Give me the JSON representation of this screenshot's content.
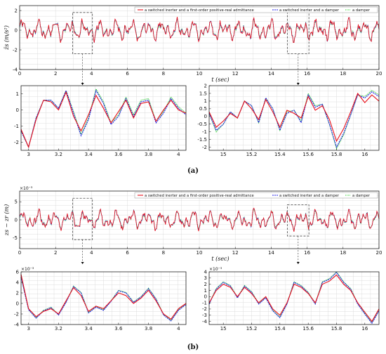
{
  "series_names": [
    "a switched inerter and a first-order positive-real admittance",
    "a switched inerter and a damper",
    "a damper"
  ],
  "colors": {
    "red": "#e8101a",
    "blue": "#1a1ae6",
    "green": "#22cc22",
    "grid": "#d6d6d6",
    "axis": "#000000",
    "box": "#444444"
  },
  "captions": {
    "a": "(a)",
    "b": "(b)"
  },
  "chart_data": [
    {
      "id": "a-main",
      "type": "line",
      "ylabel": "z̈s (m/s²)",
      "xlabel": "t (sec)",
      "xlim": [
        0,
        20
      ],
      "ylim": [
        -4,
        2.5
      ],
      "xticks": [
        0,
        2,
        4,
        6,
        8,
        10,
        12,
        14,
        16,
        18,
        20
      ],
      "yticks": [
        -4,
        -2,
        0,
        2
      ],
      "legend": "top-right",
      "grid": true,
      "zoom_boxes": [
        {
          "x": [
            2.95,
            4.05
          ],
          "y": [
            -2.4,
            1.8
          ]
        },
        {
          "x": [
            14.9,
            16.1
          ],
          "y": [
            -2.4,
            2.0
          ]
        }
      ],
      "signal": {
        "amp": 0.9,
        "seed": 1
      }
    },
    {
      "id": "a-zoom1",
      "type": "line",
      "xlim": [
        2.95,
        4.05
      ],
      "ylim": [
        -2.5,
        1.5
      ],
      "xticks": [
        3,
        3.2,
        3.4,
        3.6,
        3.8,
        4
      ],
      "yticks": [
        -2,
        -1,
        0,
        1
      ],
      "grid": true,
      "series": [
        {
          "name": "red",
          "x": [
            2.95,
            3.0,
            3.05,
            3.1,
            3.15,
            3.2,
            3.25,
            3.3,
            3.35,
            3.4,
            3.45,
            3.5,
            3.55,
            3.6,
            3.65,
            3.7,
            3.75,
            3.8,
            3.85,
            3.9,
            3.95,
            4.0,
            4.05
          ],
          "y": [
            -1.2,
            -2.3,
            -0.6,
            0.6,
            0.5,
            0.0,
            1.1,
            -0.4,
            -1.3,
            -0.3,
            0.9,
            0.1,
            -0.8,
            -0.1,
            0.6,
            -0.5,
            0.4,
            0.5,
            -0.7,
            0.0,
            0.6,
            0.0,
            -0.2
          ]
        },
        {
          "name": "blue",
          "x": [
            2.95,
            3.0,
            3.05,
            3.1,
            3.15,
            3.2,
            3.25,
            3.3,
            3.35,
            3.4,
            3.45,
            3.5,
            3.55,
            3.6,
            3.65,
            3.7,
            3.75,
            3.8,
            3.85,
            3.9,
            3.95,
            4.0,
            4.05
          ],
          "y": [
            -1.3,
            -2.3,
            -0.5,
            0.6,
            0.6,
            0.1,
            1.2,
            -0.2,
            -1.6,
            -0.6,
            1.2,
            0.4,
            -0.9,
            -0.4,
            0.7,
            -0.4,
            0.5,
            0.6,
            -0.8,
            -0.2,
            0.7,
            0.1,
            -0.3
          ]
        },
        {
          "name": "green",
          "x": [
            2.95,
            3.0,
            3.05,
            3.1,
            3.15,
            3.2,
            3.25,
            3.3,
            3.35,
            3.4,
            3.45,
            3.5,
            3.55,
            3.6,
            3.65,
            3.7,
            3.75,
            3.8,
            3.85,
            3.9,
            3.95,
            4.0,
            4.05
          ],
          "y": [
            -1.3,
            -2.3,
            -0.5,
            0.6,
            0.6,
            0.1,
            1.2,
            -0.1,
            -1.5,
            -0.5,
            1.3,
            0.5,
            -0.8,
            -0.3,
            0.8,
            -0.3,
            0.6,
            0.7,
            -0.7,
            -0.1,
            0.8,
            0.2,
            -0.2
          ]
        }
      ]
    },
    {
      "id": "a-zoom2",
      "type": "line",
      "xlim": [
        14.9,
        16.1
      ],
      "ylim": [
        -2.2,
        2.0
      ],
      "xticks": [
        15,
        15.2,
        15.4,
        15.6,
        15.8,
        16
      ],
      "yticks": [
        -2,
        -1.5,
        -1,
        -0.5,
        0,
        0.5,
        1,
        1.5,
        2
      ],
      "grid": true,
      "series": [
        {
          "name": "red",
          "x": [
            14.9,
            14.95,
            15.0,
            15.05,
            15.1,
            15.15,
            15.2,
            15.25,
            15.3,
            15.35,
            15.4,
            15.45,
            15.5,
            15.55,
            15.6,
            15.65,
            15.7,
            15.75,
            15.8,
            15.85,
            15.9,
            15.95,
            16.0,
            16.05,
            16.1
          ],
          "y": [
            0.3,
            -0.7,
            -0.3,
            0.2,
            -0.1,
            1.0,
            0.5,
            -0.2,
            1.1,
            0.3,
            -0.7,
            0.4,
            0.2,
            -0.1,
            1.3,
            0.4,
            0.7,
            -0.2,
            -1.6,
            -0.8,
            0.3,
            1.5,
            0.9,
            1.4,
            1.0
          ]
        },
        {
          "name": "blue",
          "x": [
            14.9,
            14.95,
            15.0,
            15.05,
            15.1,
            15.15,
            15.2,
            15.25,
            15.3,
            15.35,
            15.4,
            15.45,
            15.5,
            15.55,
            15.6,
            15.65,
            15.7,
            15.75,
            15.8,
            15.85,
            15.9,
            15.95,
            16.0,
            16.05,
            16.1
          ],
          "y": [
            0.2,
            -0.9,
            -0.5,
            0.3,
            -0.1,
            1.0,
            0.7,
            -0.4,
            1.2,
            0.5,
            -0.9,
            0.2,
            0.4,
            -0.4,
            1.4,
            0.6,
            0.8,
            -0.5,
            -2.0,
            -1.1,
            0.1,
            1.4,
            1.2,
            1.6,
            1.3
          ]
        },
        {
          "name": "green",
          "x": [
            14.9,
            14.95,
            15.0,
            15.05,
            15.1,
            15.15,
            15.2,
            15.25,
            15.3,
            15.35,
            15.4,
            15.45,
            15.5,
            15.55,
            15.6,
            15.65,
            15.7,
            15.75,
            15.8,
            15.85,
            15.9,
            15.95,
            16.0,
            16.05,
            16.1
          ],
          "y": [
            0.2,
            -1.0,
            -0.5,
            0.3,
            -0.1,
            1.0,
            0.7,
            -0.4,
            1.2,
            0.5,
            -0.9,
            0.3,
            0.4,
            -0.3,
            1.5,
            0.7,
            0.8,
            -0.5,
            -2.1,
            -1.2,
            0.1,
            1.4,
            1.3,
            1.7,
            1.4
          ]
        }
      ]
    },
    {
      "id": "b-main",
      "type": "line",
      "ylabel": "zs − zr (m)",
      "xlabel": "t (sec)",
      "exponent": "×10⁻³",
      "xlim": [
        0,
        20
      ],
      "ylim": [
        -8,
        8
      ],
      "xticks": [
        0,
        2,
        4,
        6,
        8,
        10,
        12,
        14,
        16,
        18,
        20
      ],
      "yticks": [
        -5,
        0,
        5
      ],
      "legend": "top-right",
      "grid": true,
      "zoom_boxes": [
        {
          "x": [
            2.95,
            4.05
          ],
          "y": [
            -5.5,
            6.0
          ]
        },
        {
          "x": [
            14.9,
            16.1
          ],
          "y": [
            -4.5,
            4.2
          ]
        }
      ],
      "signal": {
        "amp": 2.2,
        "seed": 7
      }
    },
    {
      "id": "b-zoom1",
      "type": "line",
      "exponent": "×10⁻³",
      "xlim": [
        2.95,
        4.05
      ],
      "ylim": [
        -4,
        6
      ],
      "xticks": [
        3,
        3.2,
        3.4,
        3.6,
        3.8,
        4
      ],
      "yticks": [
        -4,
        -2,
        0,
        2,
        4,
        6
      ],
      "grid": true,
      "series": [
        {
          "name": "red",
          "x": [
            2.95,
            3.0,
            3.05,
            3.1,
            3.15,
            3.2,
            3.25,
            3.3,
            3.35,
            3.4,
            3.45,
            3.5,
            3.55,
            3.6,
            3.65,
            3.7,
            3.75,
            3.8,
            3.85,
            3.9,
            3.95,
            4.0,
            4.05
          ],
          "y": [
            5.5,
            -1.0,
            -2.5,
            -1.5,
            -1.0,
            -2.0,
            0.5,
            3.0,
            1.5,
            -1.5,
            -0.5,
            -1.0,
            0.5,
            2.0,
            1.5,
            0.0,
            1.0,
            2.5,
            0.5,
            -2.0,
            -3.0,
            -1.0,
            0.0
          ]
        },
        {
          "name": "blue",
          "x": [
            2.95,
            3.0,
            3.05,
            3.1,
            3.15,
            3.2,
            3.25,
            3.3,
            3.35,
            3.4,
            3.45,
            3.5,
            3.55,
            3.6,
            3.65,
            3.7,
            3.75,
            3.8,
            3.85,
            3.9,
            3.95,
            4.0,
            4.05
          ],
          "y": [
            5.0,
            -1.2,
            -2.8,
            -1.4,
            -0.8,
            -2.2,
            0.2,
            3.2,
            2.0,
            -1.8,
            -0.7,
            -1.3,
            0.4,
            2.4,
            2.0,
            0.2,
            1.2,
            2.8,
            0.8,
            -2.2,
            -3.3,
            -1.3,
            -0.2
          ]
        },
        {
          "name": "green",
          "x": [
            2.95,
            3.0,
            3.05,
            3.1,
            3.15,
            3.2,
            3.25,
            3.3,
            3.35,
            3.4,
            3.45,
            3.5,
            3.55,
            3.6,
            3.65,
            3.7,
            3.75,
            3.8,
            3.85,
            3.9,
            3.95,
            4.0,
            4.05
          ],
          "y": [
            5.0,
            -1.1,
            -2.7,
            -1.3,
            -0.7,
            -2.1,
            0.3,
            3.3,
            2.1,
            -1.7,
            -0.6,
            -1.2,
            0.5,
            2.5,
            2.1,
            0.3,
            1.3,
            2.9,
            0.9,
            -2.1,
            -3.2,
            -1.2,
            -0.1
          ]
        }
      ]
    },
    {
      "id": "b-zoom2",
      "type": "line",
      "exponent": "×10⁻³",
      "xlim": [
        14.9,
        16.1
      ],
      "ylim": [
        -4.5,
        4.0
      ],
      "xticks": [
        15,
        15.2,
        15.4,
        15.6,
        15.8,
        16
      ],
      "yticks": [
        -4,
        -3,
        -2,
        -1,
        0,
        1,
        2,
        3,
        4
      ],
      "grid": true,
      "series": [
        {
          "name": "red",
          "x": [
            14.9,
            14.95,
            15.0,
            15.05,
            15.1,
            15.15,
            15.2,
            15.25,
            15.3,
            15.35,
            15.4,
            15.45,
            15.5,
            15.55,
            15.6,
            15.65,
            15.7,
            15.75,
            15.8,
            15.85,
            15.9,
            15.95,
            16.0,
            16.05,
            16.1
          ],
          "y": [
            -1.0,
            1.0,
            2.0,
            1.5,
            0.0,
            1.5,
            0.5,
            -1.0,
            0.0,
            -2.0,
            -3.0,
            -1.0,
            2.0,
            1.5,
            0.5,
            -1.0,
            2.0,
            2.5,
            3.5,
            2.0,
            1.0,
            -1.0,
            -2.5,
            -4.0,
            -2.0
          ]
        },
        {
          "name": "blue",
          "x": [
            14.9,
            14.95,
            15.0,
            15.05,
            15.1,
            15.15,
            15.2,
            15.25,
            15.3,
            15.35,
            15.4,
            15.45,
            15.5,
            15.55,
            15.6,
            15.65,
            15.7,
            15.75,
            15.8,
            15.85,
            15.9,
            15.95,
            16.0,
            16.05,
            16.1
          ],
          "y": [
            -1.2,
            1.2,
            2.3,
            1.7,
            -0.2,
            1.7,
            0.7,
            -1.2,
            -0.2,
            -2.3,
            -3.4,
            -1.2,
            2.3,
            1.7,
            0.6,
            -1.2,
            2.3,
            2.8,
            3.9,
            2.3,
            1.2,
            -1.2,
            -2.8,
            -4.3,
            -2.3
          ]
        },
        {
          "name": "green",
          "x": [
            14.9,
            14.95,
            15.0,
            15.05,
            15.1,
            15.15,
            15.2,
            15.25,
            15.3,
            15.35,
            15.4,
            15.45,
            15.5,
            15.55,
            15.6,
            15.65,
            15.7,
            15.75,
            15.8,
            15.85,
            15.9,
            15.95,
            16.0,
            16.05,
            16.1
          ],
          "y": [
            -1.1,
            1.3,
            2.4,
            1.8,
            -0.1,
            1.8,
            0.8,
            -1.1,
            -0.1,
            -2.2,
            -3.3,
            -1.1,
            2.4,
            1.8,
            0.7,
            -1.1,
            2.4,
            2.9,
            4.0,
            2.4,
            1.3,
            -1.1,
            -2.7,
            -4.2,
            -2.2
          ]
        }
      ]
    }
  ]
}
